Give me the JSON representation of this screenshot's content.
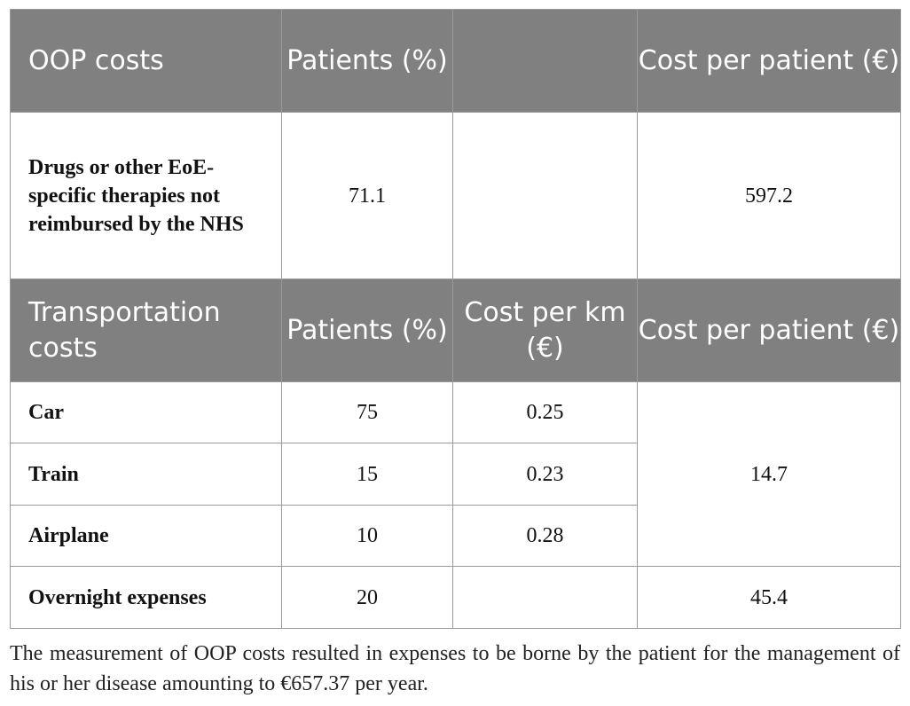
{
  "table": {
    "section1": {
      "header": [
        "OOP costs",
        "Patients (%)",
        "",
        "Cost per patient (€)"
      ],
      "row": {
        "label": "Drugs or other EoE-specific therapies not reimbursed by the NHS",
        "patients": "71.1",
        "cost_per_km": "",
        "cost_per_patient": "597.2"
      }
    },
    "section2": {
      "header": [
        "Transportation costs",
        "Patients (%)",
        "Cost per km (€)",
        "Cost per patient (€)"
      ],
      "rows": [
        {
          "label": "Car",
          "patients": "75",
          "cost_per_km": "0.25"
        },
        {
          "label": "Train",
          "patients": "15",
          "cost_per_km": "0.23"
        },
        {
          "label": "Airplane",
          "patients": "10",
          "cost_per_km": "0.28"
        }
      ],
      "transport_cost_per_patient": "14.7",
      "overnight": {
        "label": "Overnight expenses",
        "patients": "20",
        "cost_per_km": "",
        "cost_per_patient": "45.4"
      }
    }
  },
  "footnote": "The measurement of OOP costs resulted in expenses to be borne by the patient for the management of his or her disease amounting to €657.37 per year."
}
